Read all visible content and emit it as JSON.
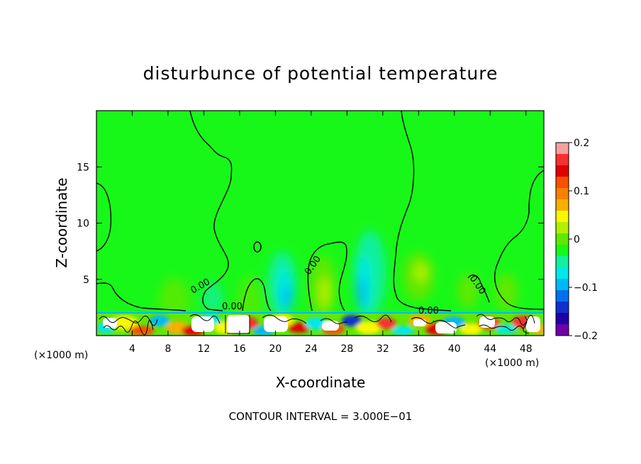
{
  "chart_data": {
    "type": "heatmap",
    "title": "disturbunce of potential temperature",
    "xlabel": "X-coordinate",
    "ylabel": "Z-coordinate",
    "x_unit": "(×1000 m)",
    "y_unit": "(×1000 m)",
    "xlim": [
      0,
      50
    ],
    "ylim": [
      0,
      20
    ],
    "x_ticks": [
      4,
      8,
      12,
      16,
      20,
      24,
      28,
      32,
      36,
      40,
      44,
      48
    ],
    "y_ticks": [
      5,
      10,
      15
    ],
    "colorbar": {
      "range": [
        -0.2,
        0.2
      ],
      "tick_values": [
        0.2,
        0.1,
        0,
        -0.1,
        -0.2
      ],
      "tick_labels": [
        "0.2",
        "0.1",
        "0",
        "−0.1",
        "−0.2"
      ],
      "colors": [
        "#f8a0a0",
        "#f83030",
        "#e00000",
        "#f85000",
        "#f88000",
        "#f8b000",
        "#f8f800",
        "#b0f000",
        "#60e800",
        "#18f818",
        "#10f0a0",
        "#00e8e8",
        "#00b8f8",
        "#0070f0",
        "#1030d0",
        "#2000a8",
        "#7000a8"
      ]
    },
    "contour_labels": [
      "0.00",
      "0.00",
      "0.00",
      "0.00",
      "0.00",
      "0"
    ],
    "footer": "CONTOUR INTERVAL = 3.000E−01"
  }
}
